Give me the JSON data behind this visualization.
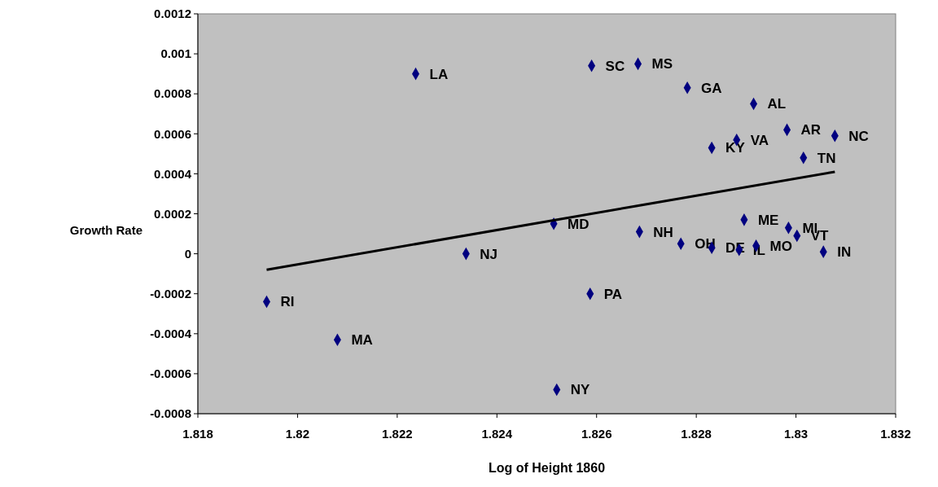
{
  "chart_data": {
    "type": "scatter",
    "xlabel": "Log of Height 1860",
    "ylabel": "Growth Rate",
    "xlim": [
      1.818,
      1.832
    ],
    "xticks": [
      1.818,
      1.82,
      1.822,
      1.824,
      1.826,
      1.828,
      1.83,
      1.832
    ],
    "ylim": [
      -0.0008,
      0.0012
    ],
    "yticks": [
      -0.0008,
      -0.0006,
      -0.0004,
      -0.0002,
      0,
      0.0002,
      0.0004,
      0.0006,
      0.0008,
      0.001,
      0.0012
    ],
    "grid": false,
    "marker": "diamond",
    "series": [
      {
        "color": "#000080",
        "x": [
          1.81938,
          1.8208,
          1.82237,
          1.82338,
          1.82514,
          1.82587,
          1.8252,
          1.8259,
          1.82683,
          1.82686,
          1.82782,
          1.82769,
          1.82831,
          1.82831,
          1.82881,
          1.82886,
          1.82896,
          1.82915,
          1.8292,
          1.82982,
          1.82985,
          1.83002,
          1.83015,
          1.83055,
          1.83078
        ],
        "values": [
          -0.00024,
          -0.00043,
          0.0009,
          0,
          0.00015,
          -0.0002,
          -0.00068,
          0.00094,
          0.00095,
          0.00011,
          0.00083,
          5e-05,
          0.00053,
          3e-05,
          0.00057,
          2e-05,
          0.00017,
          0.00075,
          4e-05,
          0.00062,
          0.00013,
          9e-05,
          0.00048,
          1e-05,
          0.00059
        ]
      },
      {
        "type": "line",
        "color": "#000000",
        "marker": "none",
        "line_style": "solid",
        "x": [
          1.81938,
          1.83078
        ],
        "values": [
          -8e-05,
          0.00041
        ]
      }
    ],
    "annotations": [
      {
        "text": "RI",
        "x": 1.81938,
        "y": -0.00024
      },
      {
        "text": "MA",
        "x": 1.8208,
        "y": -0.00043
      },
      {
        "text": "LA",
        "x": 1.82237,
        "y": 0.0009
      },
      {
        "text": "NJ",
        "x": 1.82338,
        "y": 0
      },
      {
        "text": "MD",
        "x": 1.82514,
        "y": 0.00015
      },
      {
        "text": "PA",
        "x": 1.82587,
        "y": -0.0002
      },
      {
        "text": "NY",
        "x": 1.8252,
        "y": -0.00068
      },
      {
        "text": "SC",
        "x": 1.8259,
        "y": 0.00094
      },
      {
        "text": "MS",
        "x": 1.82683,
        "y": 0.00095
      },
      {
        "text": "NH",
        "x": 1.82686,
        "y": 0.00011
      },
      {
        "text": "GA",
        "x": 1.82782,
        "y": 0.00083
      },
      {
        "text": "OH",
        "x": 1.82769,
        "y": 5e-05
      },
      {
        "text": "KY",
        "x": 1.82831,
        "y": 0.00053
      },
      {
        "text": "DE",
        "x": 1.82831,
        "y": 3e-05
      },
      {
        "text": "VA",
        "x": 1.82881,
        "y": 0.00057
      },
      {
        "text": "IL",
        "x": 1.82886,
        "y": 2e-05
      },
      {
        "text": "ME",
        "x": 1.82896,
        "y": 0.00017
      },
      {
        "text": "AL",
        "x": 1.82915,
        "y": 0.00075
      },
      {
        "text": "MO",
        "x": 1.8292,
        "y": 4e-05
      },
      {
        "text": "AR",
        "x": 1.82982,
        "y": 0.00062
      },
      {
        "text": "MI",
        "x": 1.82985,
        "y": 0.00013
      },
      {
        "text": "VT",
        "x": 1.83002,
        "y": 9e-05
      },
      {
        "text": "TN",
        "x": 1.83015,
        "y": 0.00048
      },
      {
        "text": "IN",
        "x": 1.83055,
        "y": 1e-05
      },
      {
        "text": "NC",
        "x": 1.83078,
        "y": 0.00059
      }
    ]
  }
}
